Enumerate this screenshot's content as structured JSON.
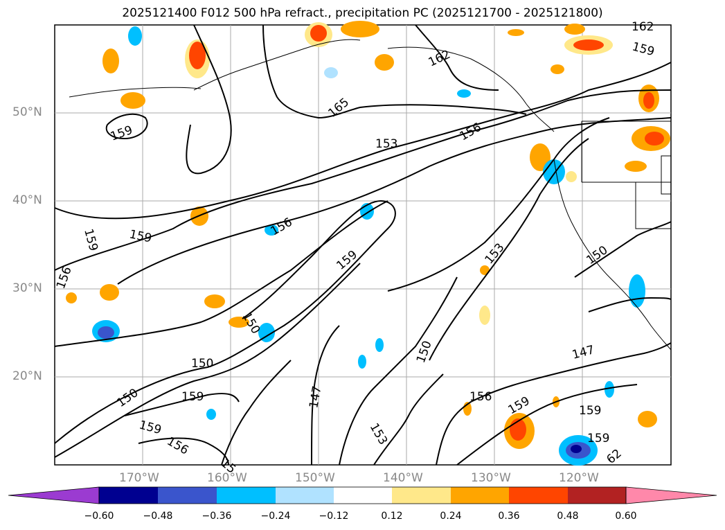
{
  "title": "2025121400 F012 500 hPa refract., precipitation PC (2025121700 - 2025121800)",
  "map": {
    "lon_range": [
      -180,
      -110
    ],
    "lat_range": [
      10,
      60
    ],
    "grid": true,
    "lat_labels": [
      "50°N",
      "40°N",
      "30°N",
      "20°N"
    ],
    "lon_labels": [
      "170°W",
      "160°W",
      "150°W",
      "140°W",
      "130°W",
      "120°W"
    ],
    "contour_labels": [
      "162",
      "159",
      "162",
      "165",
      "156",
      "153",
      "159",
      "159",
      "159",
      "156",
      "156",
      "159",
      "153",
      "150",
      "159",
      "150",
      "150",
      "150",
      "147",
      "147",
      "153",
      "156",
      "159",
      "159",
      "159",
      "62",
      "150",
      "159",
      "156",
      "15"
    ]
  },
  "colorbar": {
    "colors": [
      "#9b3bd1",
      "#000090",
      "#3a55cc",
      "#00bfff",
      "#b0e2ff",
      "#ffffff",
      "#ffe88a",
      "#ffa500",
      "#ff4500",
      "#b22222",
      "#ff88aa"
    ],
    "tick_labels": [
      "−0.60",
      "−0.48",
      "−0.36",
      "−0.24",
      "−0.12",
      "0.12",
      "0.24",
      "0.36",
      "0.48",
      "0.60"
    ]
  }
}
